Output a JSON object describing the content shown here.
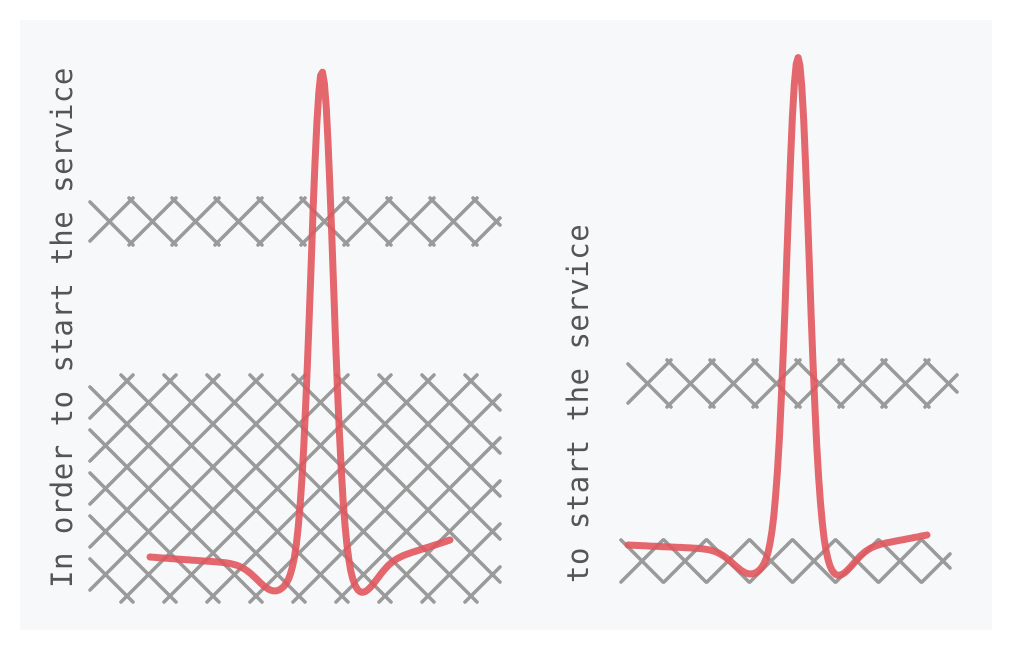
{
  "panels": [
    {
      "label": "In order to start the service",
      "hatch_bands": [
        {
          "pattern": "single-zigzag"
        },
        {
          "pattern": "crosshatch"
        }
      ],
      "curve_color": "#e0575d"
    },
    {
      "label": "to start the service",
      "hatch_bands": [
        {
          "pattern": "single-zigzag"
        },
        {
          "pattern": "single-zigzag"
        }
      ],
      "curve_color": "#e0575d"
    }
  ],
  "colors": {
    "background": "#f7f8fa",
    "hatch": "#9a9a9a",
    "curve": "#e0575d",
    "text": "#555555"
  }
}
